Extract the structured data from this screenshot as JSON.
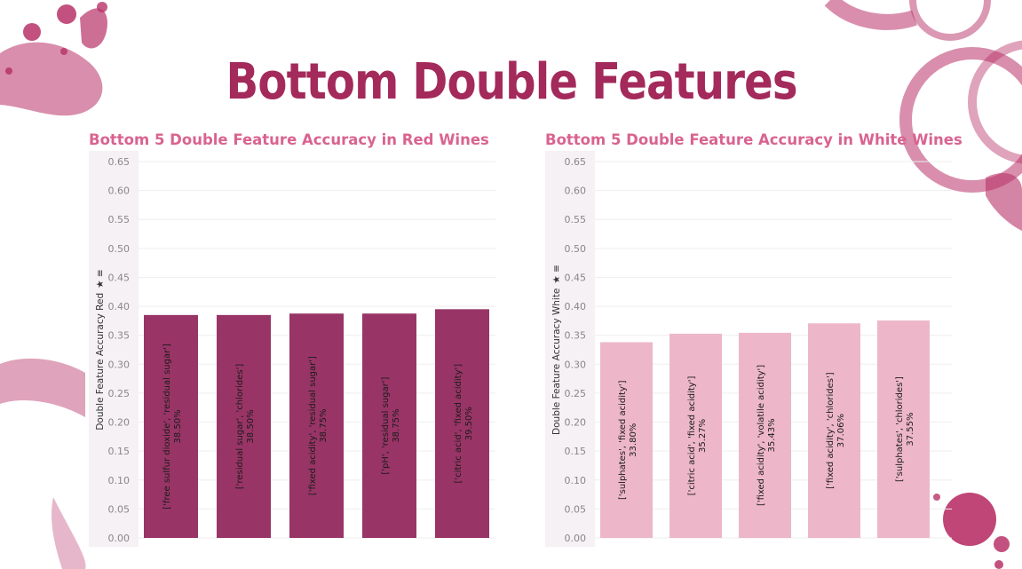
{
  "page": {
    "title": "Bottom Double Features"
  },
  "colors": {
    "title": "#a32a5b",
    "subtitle": "#d9638f",
    "red_bars": "#983566",
    "white_bars": "#edb7c9",
    "stain": "#b83268"
  },
  "chart_data": [
    {
      "id": "red",
      "type": "bar",
      "title": "Bottom 5 Double Feature Accuracy in Red Wines",
      "ylabel": "Double Feature Accuracy Red",
      "ylabel_icons": "★ ≡",
      "ylim": [
        0,
        0.65
      ],
      "yticks": [
        "0.00",
        "0.05",
        "0.10",
        "0.15",
        "0.20",
        "0.25",
        "0.30",
        "0.35",
        "0.40",
        "0.45",
        "0.50",
        "0.55",
        "0.60",
        "0.65"
      ],
      "grid": true,
      "categories": [
        "['free sulfur dioxide', 'residual sugar']",
        "['residual sugar', 'chlorides']",
        "['fixed acidity', 'residual sugar']",
        "['pH', 'residual sugar']",
        "['citric acid', 'fixed acidity']"
      ],
      "values": [
        0.385,
        0.385,
        0.3875,
        0.3875,
        0.395
      ],
      "value_labels": [
        "38.50%",
        "38.50%",
        "38.75%",
        "38.75%",
        "39.50%"
      ],
      "color": "#983566"
    },
    {
      "id": "white",
      "type": "bar",
      "title": "Bottom 5 Double Feature Accuracy in White Wines",
      "ylabel": "Double Feature Accuracy White",
      "ylabel_icons": "★ ≡",
      "ylim": [
        0,
        0.65
      ],
      "yticks": [
        "0.00",
        "0.05",
        "0.10",
        "0.15",
        "0.20",
        "0.25",
        "0.30",
        "0.35",
        "0.40",
        "0.45",
        "0.50",
        "0.55",
        "0.60",
        "0.65"
      ],
      "grid": true,
      "categories": [
        "['sulphates', 'fixed acidity']",
        "['citric acid', 'fixed acidity']",
        "['fixed acidity', 'volatile acidity']",
        "['fixed acidity', 'chlorides']",
        "['sulphates', 'chlorides']"
      ],
      "values": [
        0.338,
        0.3527,
        0.3543,
        0.3706,
        0.3755
      ],
      "value_labels": [
        "33.80%",
        "35.27%",
        "35.43%",
        "37.06%",
        "37.55%"
      ],
      "color": "#edb7c9"
    }
  ]
}
